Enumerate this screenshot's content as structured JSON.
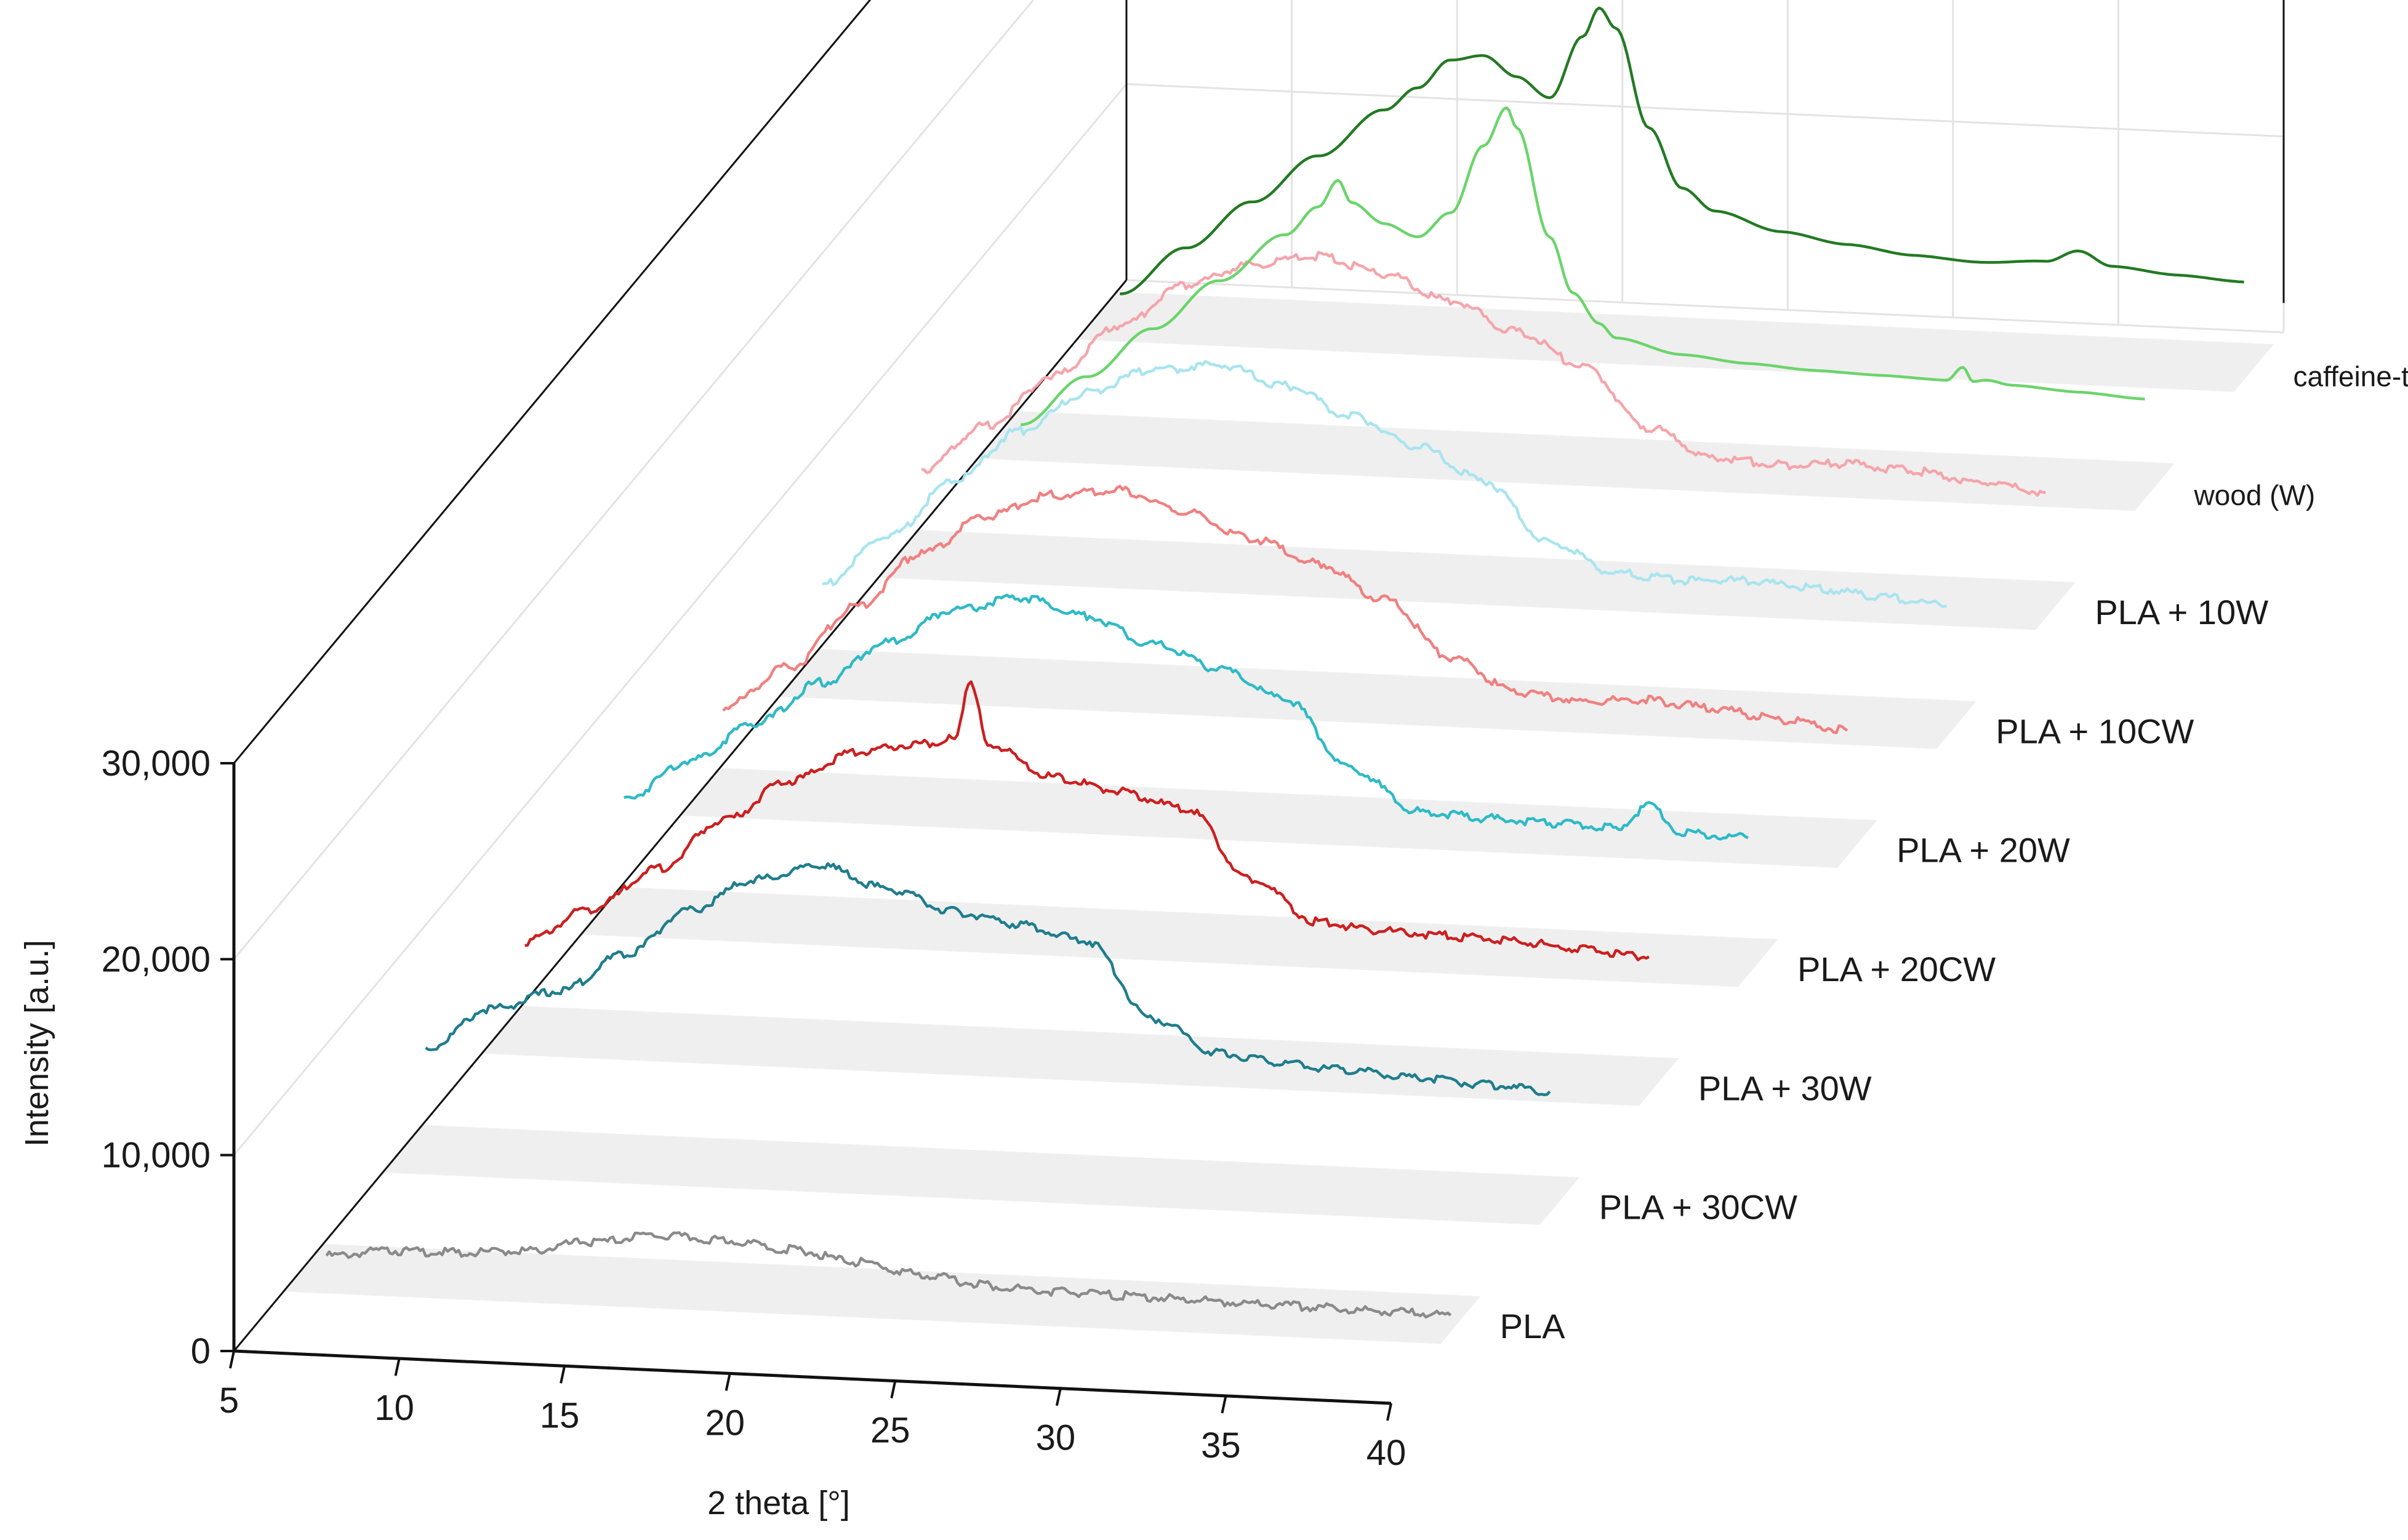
{
  "chart_data": {
    "type": "line",
    "style": "3d-waterfall",
    "title": "",
    "xlabel": "2 theta [°]",
    "ylabel": "Intensity [a.u.]",
    "xlim": [
      5,
      40
    ],
    "ylim": [
      0,
      30000
    ],
    "x_ticks": [
      "5",
      "10",
      "15",
      "20",
      "25",
      "30",
      "35",
      "40"
    ],
    "y_ticks": [
      "0",
      "10,000",
      "20,000",
      "30,000"
    ],
    "grid": true,
    "series": [
      {
        "name": "PLA",
        "color": "#8a8a8a",
        "x": [
          6,
          8,
          10,
          12,
          14,
          16,
          18,
          20,
          22,
          24,
          26,
          28,
          30,
          32,
          34,
          36,
          38,
          40
        ],
        "values": [
          1300,
          1700,
          1750,
          2000,
          2600,
          3100,
          3000,
          2700,
          2200,
          1700,
          1300,
          1150,
          1100,
          1050,
          1000,
          950,
          900,
          850
        ]
      },
      {
        "name": "PLA + 30CW",
        "color": "#1e7d8c",
        "x": [
          6,
          8,
          10,
          12,
          14,
          16,
          18,
          20,
          22,
          24,
          26,
          28,
          30,
          32,
          34,
          36,
          38,
          40
        ],
        "values": [
          5800,
          8000,
          9000,
          11000,
          13500,
          15200,
          16000,
          15000,
          14000,
          13500,
          12800,
          9000,
          7400,
          7000,
          6800,
          6600,
          6400,
          6200
        ]
      },
      {
        "name": "PLA + 30W",
        "color": "#cc1f1f",
        "x": [
          6,
          8,
          10,
          12,
          14,
          16,
          18,
          19,
          19.5,
          20,
          22,
          24,
          26,
          28,
          30,
          32,
          34,
          36,
          38,
          40
        ],
        "values": [
          5200,
          7000,
          9200,
          11800,
          14000,
          15600,
          16200,
          16500,
          19500,
          16300,
          14800,
          14200,
          13500,
          10000,
          8000,
          7700,
          7600,
          7500,
          7200,
          7000
        ]
      },
      {
        "name": "PLA + 20CW",
        "color": "#2ebac6",
        "x": [
          6,
          8,
          10,
          12,
          14,
          16,
          18,
          20,
          22,
          24,
          26,
          28,
          30,
          32,
          34,
          36,
          37,
          38,
          40
        ],
        "values": [
          6400,
          8500,
          10600,
          12800,
          15000,
          16800,
          17600,
          16800,
          15500,
          14400,
          13000,
          9600,
          7600,
          7400,
          7300,
          7200,
          8400,
          7100,
          7000
        ]
      },
      {
        "name": "PLA + 20W",
        "color": "#f08080",
        "x": [
          6,
          8,
          10,
          12,
          14,
          16,
          18,
          20,
          22,
          24,
          26,
          28,
          30,
          32,
          34,
          36,
          38,
          40
        ],
        "values": [
          5000,
          7200,
          10400,
          13300,
          15400,
          16600,
          17000,
          16000,
          14800,
          13700,
          12000,
          9200,
          7600,
          7300,
          7500,
          7200,
          6800,
          6400
        ]
      },
      {
        "name": "PLA + 10CW",
        "color": "#a8e4ee",
        "x": [
          6,
          8,
          10,
          12,
          14,
          16,
          18,
          20,
          22,
          24,
          26,
          28,
          30,
          32,
          34,
          36,
          38,
          40
        ],
        "values": [
          5200,
          7800,
          10800,
          13500,
          15600,
          16900,
          17300,
          16400,
          15000,
          13600,
          12000,
          9000,
          7600,
          7400,
          7500,
          7300,
          7000,
          6700
        ]
      },
      {
        "name": "PLA + 10W",
        "color": "#f4a5ab",
        "x": [
          6,
          8,
          10,
          12,
          14,
          16,
          18,
          20,
          22,
          24,
          26,
          28,
          30,
          32,
          34,
          36,
          38,
          40
        ],
        "values": [
          5000,
          7400,
          10100,
          12800,
          15000,
          16200,
          16800,
          16000,
          14800,
          13400,
          11800,
          8800,
          7400,
          7200,
          7400,
          7200,
          6800,
          6400
        ]
      },
      {
        "name": "wood (W)",
        "color": "#6bd46b",
        "x": [
          6,
          8,
          10,
          12,
          14,
          15,
          15.6,
          16,
          17,
          18,
          19,
          20,
          20.7,
          21,
          22,
          22.7,
          23.5,
          24,
          26,
          28,
          30,
          32,
          34,
          34.5,
          34.8,
          35.2,
          36,
          38,
          40
        ],
        "values": [
          1200,
          3800,
          6400,
          9000,
          11500,
          13000,
          14400,
          13300,
          12300,
          11700,
          13000,
          16500,
          18500,
          17500,
          12000,
          9200,
          7700,
          7000,
          6300,
          6000,
          5800,
          5700,
          5600,
          6300,
          5600,
          5700,
          5500,
          5300,
          5100
        ]
      },
      {
        "name": "caffeine-treated wood (CW)",
        "color": "#237a23",
        "x": [
          6,
          8,
          10,
          12,
          14,
          15,
          16,
          17,
          18,
          19,
          20,
          20.5,
          21,
          22,
          23,
          24,
          26,
          28,
          30,
          32,
          34,
          35,
          36,
          38,
          40
        ],
        "values": [
          1800,
          4300,
          6800,
          9300,
          11800,
          13000,
          14500,
          14800,
          13800,
          12800,
          16000,
          17500,
          16500,
          11500,
          8500,
          7400,
          6500,
          6000,
          5600,
          5400,
          5600,
          6200,
          5500,
          5200,
          5000
        ]
      }
    ]
  },
  "series_labels": [
    "PLA",
    "PLA + 30CW",
    "PLA + 30W",
    "PLA + 20CW",
    "PLA + 20W",
    "PLA + 10CW",
    "PLA + 10W",
    "wood (W)",
    "caffeine-treated wood (CW)"
  ]
}
